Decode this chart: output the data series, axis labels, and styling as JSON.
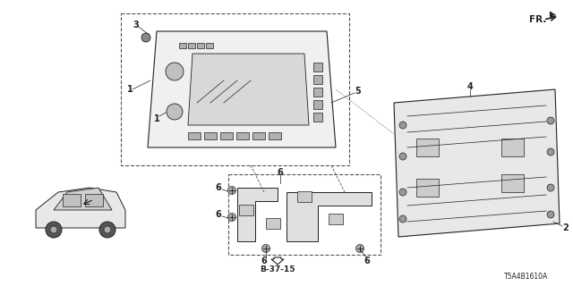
{
  "title": "",
  "bg_color": "#ffffff",
  "fig_width": 6.4,
  "fig_height": 3.2,
  "dpi": 100,
  "part_numbers": {
    "label1": "1",
    "label2": "2",
    "label3": "3",
    "label4": "4",
    "label5": "5",
    "label6": "6"
  },
  "footnote_code": "T5A4B1610A",
  "ref_code": "B-37-15",
  "fr_label": "FR.",
  "font_size_small": 6,
  "font_size_label": 7,
  "line_color": "#222222",
  "dashed_color": "#555555"
}
